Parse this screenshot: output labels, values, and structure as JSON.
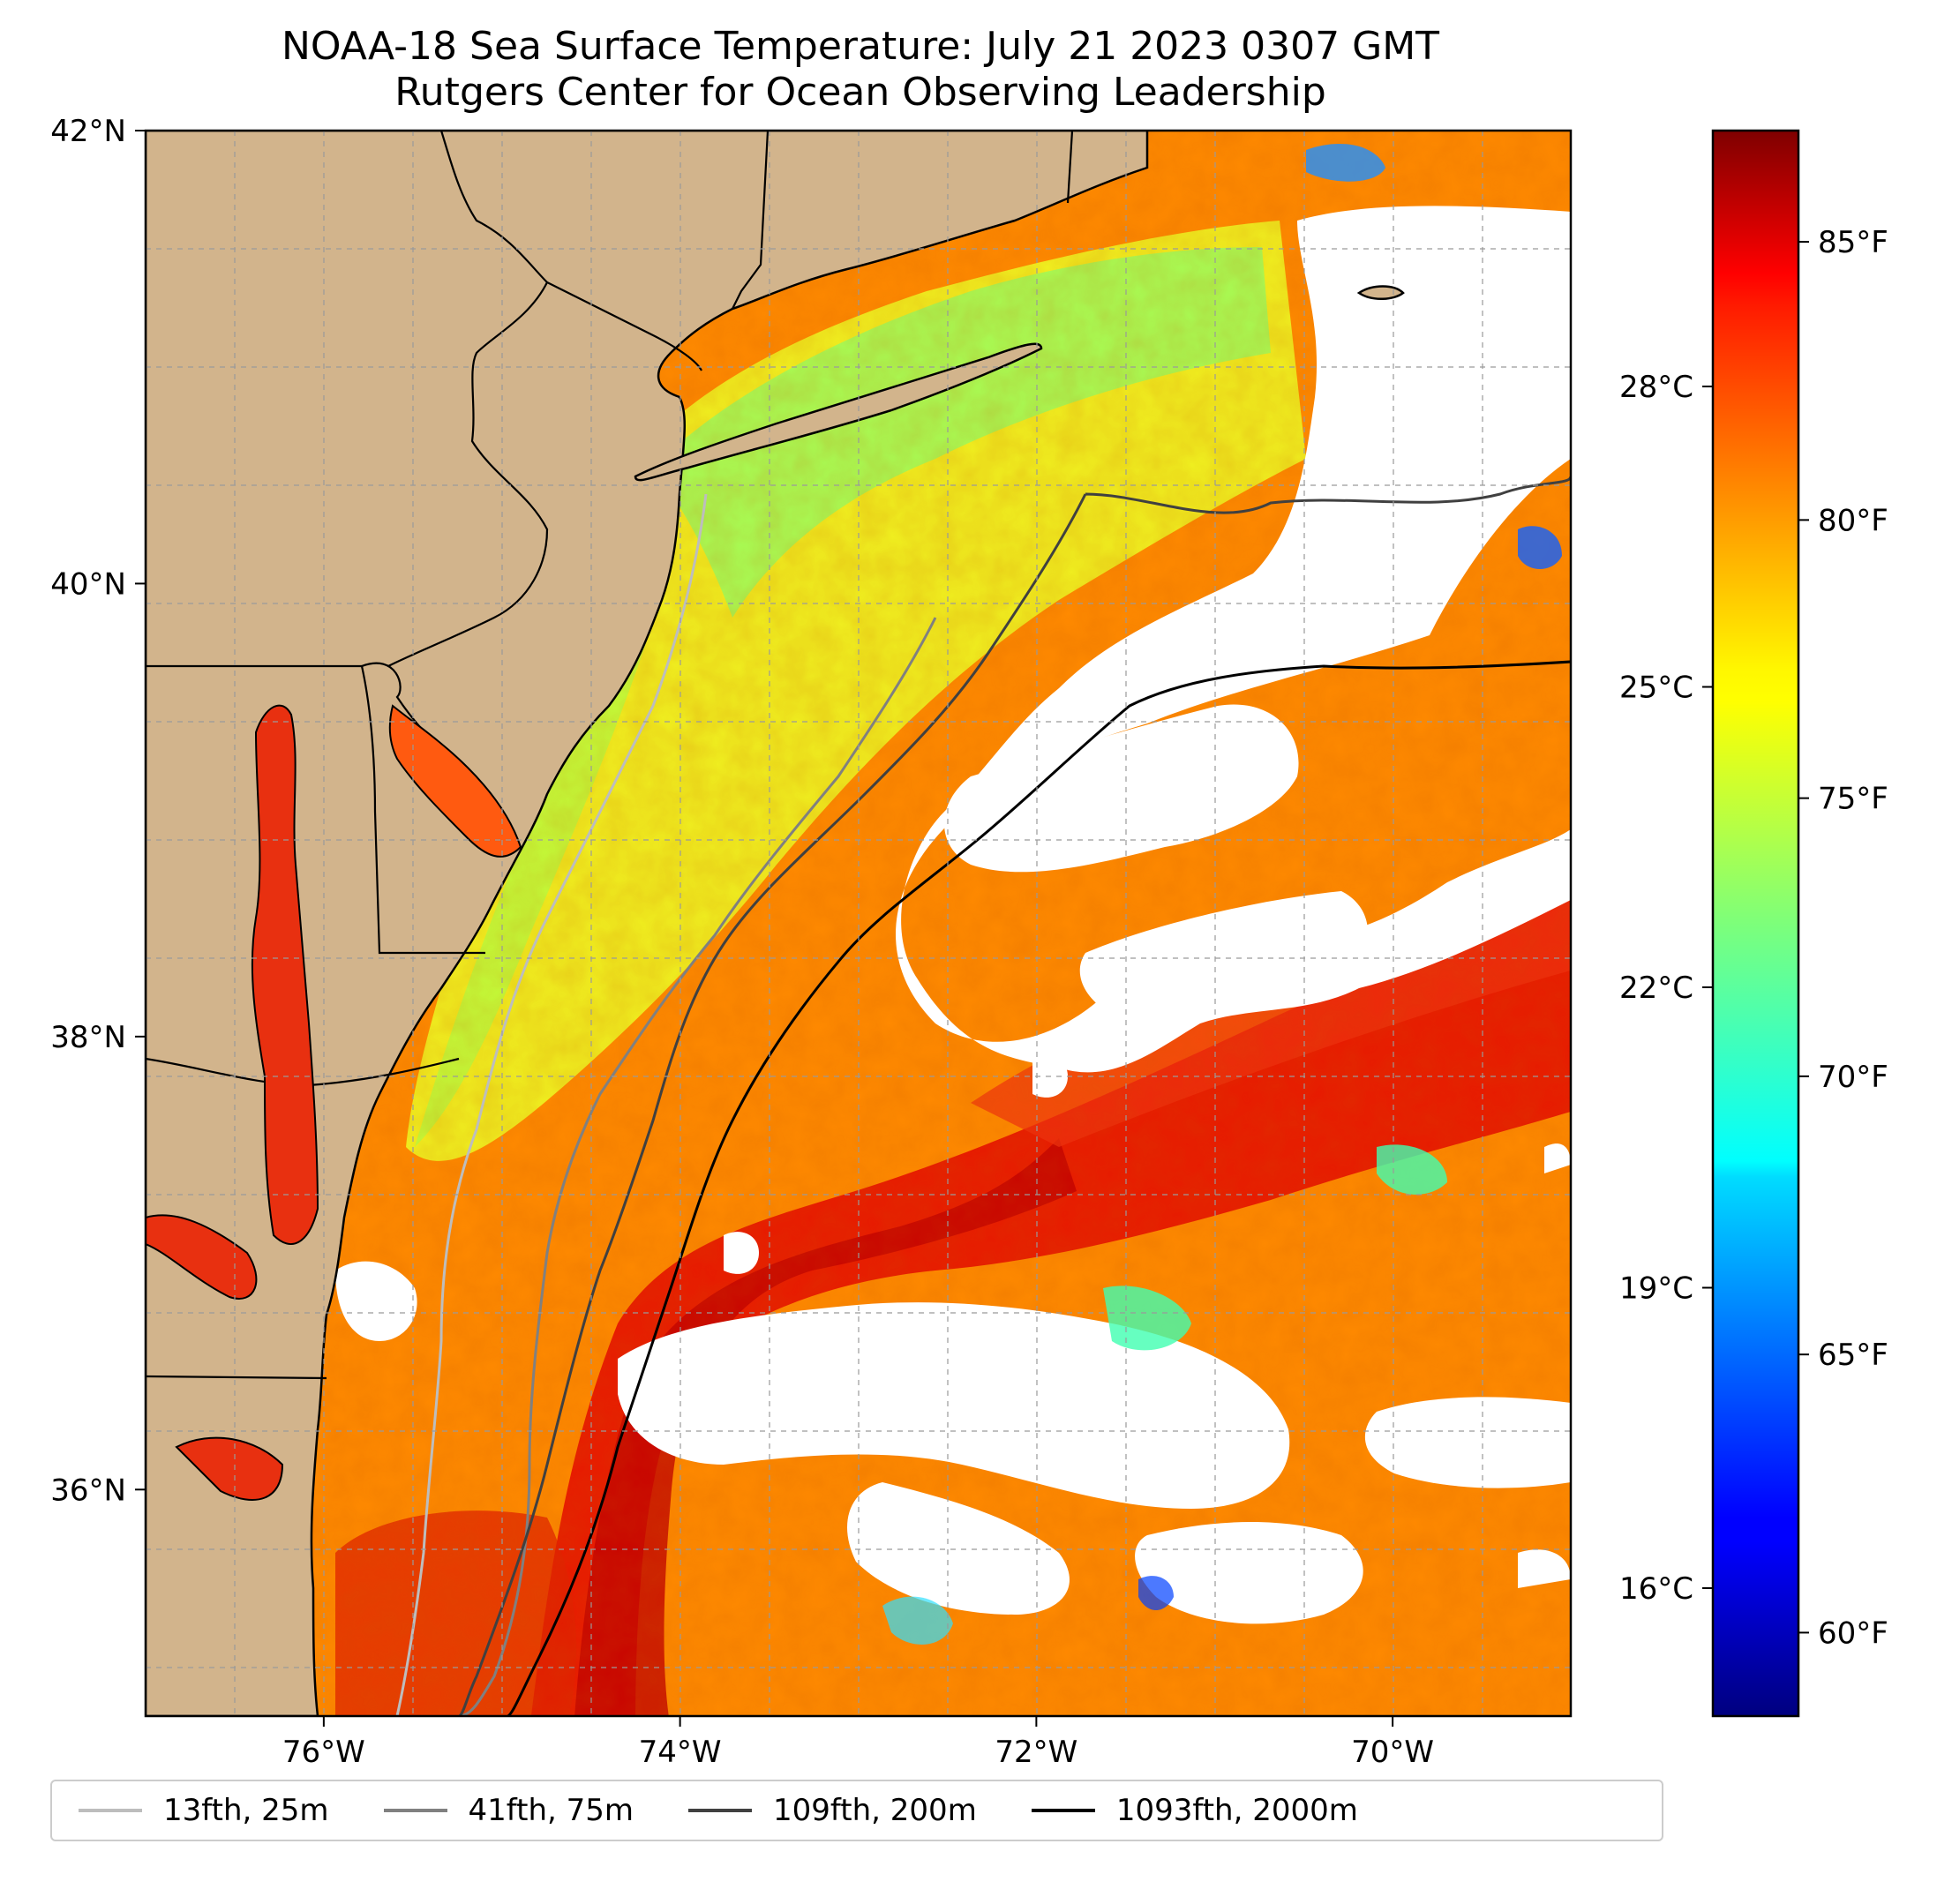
{
  "title": "NOAA-18 Sea Surface Temperature: July 21 2023 0307 GMT",
  "subtitle": "Rutgers Center for Ocean Observing Leadership",
  "map": {
    "lon_range": [
      -77.0,
      -69.0
    ],
    "lat_range": [
      35.0,
      42.0
    ],
    "lon_ticks": [
      {
        "value": -76,
        "label": "76°W"
      },
      {
        "value": -74,
        "label": "74°W"
      },
      {
        "value": -72,
        "label": "72°W"
      },
      {
        "value": -70,
        "label": "70°W"
      }
    ],
    "lat_ticks": [
      {
        "value": 42,
        "label": "42°N"
      },
      {
        "value": 40,
        "label": "40°N"
      },
      {
        "value": 38,
        "label": "38°N"
      },
      {
        "value": 36,
        "label": "36°N"
      }
    ],
    "land_color": "#d2b48c",
    "gridlines": true
  },
  "colorbar": {
    "colormap": "jet",
    "range_f": [
      58.5,
      87.0
    ],
    "f_ticks": [
      {
        "value": 85,
        "label": "85°F"
      },
      {
        "value": 80,
        "label": "80°F"
      },
      {
        "value": 75,
        "label": "75°F"
      },
      {
        "value": 70,
        "label": "70°F"
      },
      {
        "value": 65,
        "label": "65°F"
      },
      {
        "value": 60,
        "label": "60°F"
      }
    ],
    "c_ticks": [
      {
        "value": 28,
        "label": "28°C"
      },
      {
        "value": 25,
        "label": "25°C"
      },
      {
        "value": 22,
        "label": "22°C"
      },
      {
        "value": 19,
        "label": "19°C"
      },
      {
        "value": 16,
        "label": "16°C"
      }
    ]
  },
  "legend": [
    {
      "label": "13fth, 25m",
      "color": "#bdbdbd"
    },
    {
      "label": "41fth, 75m",
      "color": "#808080"
    },
    {
      "label": "109fth, 200m",
      "color": "#404040"
    },
    {
      "label": "1093fth, 2000m",
      "color": "#000000"
    }
  ]
}
